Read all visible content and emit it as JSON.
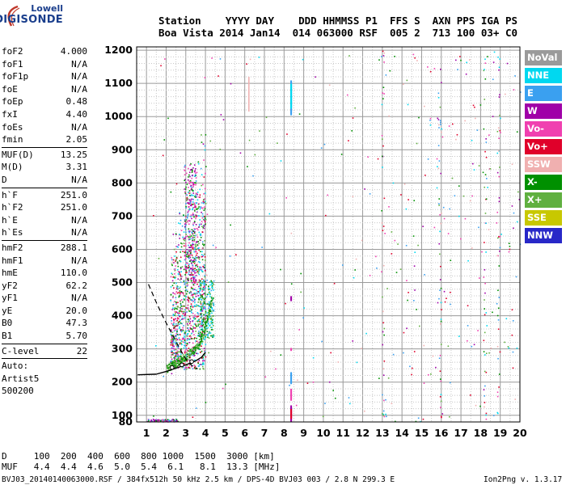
{
  "logo": {
    "top": "Lowell",
    "main": "DIGISONDE"
  },
  "header": {
    "line1": "Station    YYYY DAY    DDD HHMMSS P1  FFS S  AXN PPS IGA PS",
    "line2": "Boa Vista 2014 Jan14  014 063000 RSF  005 2  713 100 03+ C0"
  },
  "params": [
    {
      "label": "foF2",
      "value": "4.000"
    },
    {
      "label": "foF1",
      "value": "N/A"
    },
    {
      "label": "foF1p",
      "value": "N/A"
    },
    {
      "label": "foE",
      "value": "N/A"
    },
    {
      "label": "foEp",
      "value": "0.48"
    },
    {
      "label": "fxI",
      "value": "4.40"
    },
    {
      "label": "foEs",
      "value": "N/A"
    },
    {
      "label": "fmin",
      "value": "2.05"
    },
    {
      "sep": true
    },
    {
      "label": "MUF(D)",
      "value": "13.25"
    },
    {
      "label": "M(D)",
      "value": "3.31"
    },
    {
      "label": "D",
      "value": "N/A"
    },
    {
      "sep": true
    },
    {
      "label": "h`F",
      "value": "251.0"
    },
    {
      "label": "h`F2",
      "value": "251.0"
    },
    {
      "label": "h`E",
      "value": "N/A"
    },
    {
      "label": "h`Es",
      "value": "N/A"
    },
    {
      "sep": true
    },
    {
      "label": "hmF2",
      "value": "288.1"
    },
    {
      "label": "hmF1",
      "value": "N/A"
    },
    {
      "label": "hmE",
      "value": "110.0"
    },
    {
      "label": "yF2",
      "value": "62.2"
    },
    {
      "label": "yF1",
      "value": "N/A"
    },
    {
      "label": "yE",
      "value": "20.0"
    },
    {
      "label": "B0",
      "value": "47.3"
    },
    {
      "label": "B1",
      "value": "5.70"
    },
    {
      "sep": true
    },
    {
      "label": "C-level",
      "value": "22"
    },
    {
      "sep": true
    },
    {
      "label": "Auto:",
      "value": ""
    },
    {
      "label": "Artist5",
      "value": ""
    },
    {
      "label": "500200",
      "value": ""
    }
  ],
  "legend": [
    {
      "label": "NoVal",
      "color": "#9a9a9a"
    },
    {
      "label": "NNE",
      "color": "#00d8f0"
    },
    {
      "label": "E",
      "color": "#3aa0f0"
    },
    {
      "label": "W",
      "color": "#a000a8"
    },
    {
      "label": "Vo-",
      "color": "#f040b0"
    },
    {
      "label": "Vo+",
      "color": "#e0002a"
    },
    {
      "label": "SSW",
      "color": "#f0b0b0"
    },
    {
      "label": "X-",
      "color": "#009000"
    },
    {
      "label": "X+",
      "color": "#60b040"
    },
    {
      "label": "SSE",
      "color": "#c8c800"
    },
    {
      "label": "NNW",
      "color": "#2828c8"
    }
  ],
  "footer": {
    "d_row": "D     100  200  400  600  800 1000  1500  3000 [km]",
    "muf_row": "MUF   4.4  4.4  4.6  5.0  5.4  6.1   8.1  13.3 [MHz]",
    "file": "BVJ03_20140140063000.RSF / 384fx512h 50 kHz 2.5 km / DPS-4D BVJ03 003 / 2.8 N 299.3 E",
    "version": "Ion2Png v. 1.3.17"
  },
  "chart_data": {
    "type": "scatter",
    "title": "",
    "xlabel": "",
    "ylabel": "",
    "xlim": [
      0.5,
      20
    ],
    "ylim": [
      80,
      1210
    ],
    "x_ticks": [
      1,
      2,
      3,
      4,
      5,
      6,
      7,
      8,
      9,
      10,
      11,
      12,
      13,
      14,
      15,
      16,
      17,
      18,
      19,
      20
    ],
    "y_ticks": [
      80,
      100,
      200,
      300,
      400,
      500,
      600,
      700,
      800,
      900,
      1000,
      1100,
      1200
    ],
    "grid": true,
    "trace_regions": [
      {
        "name": "F-trace",
        "x": [
          2.0,
          4.4
        ],
        "y": [
          220,
          520
        ],
        "colors": [
          "X-",
          "X+",
          "E",
          "W",
          "Vo-"
        ]
      },
      {
        "name": "F-spread",
        "x": [
          2.3,
          3.8
        ],
        "y": [
          300,
          860
        ],
        "colors": [
          "X-",
          "W",
          "Vo-",
          "E"
        ]
      },
      {
        "name": "E-layer-echo",
        "x": [
          1.0,
          2.5
        ],
        "y": [
          80,
          90
        ],
        "colors": [
          "Vo-",
          "W",
          "X-"
        ]
      },
      {
        "name": "interference-8.3MHz",
        "x": [
          8.3,
          8.3
        ],
        "y": [
          80,
          1110
        ],
        "colors": [
          "W",
          "Vo-",
          "E",
          "NNE"
        ]
      }
    ],
    "profile_curve": [
      [
        1.5,
        224
      ],
      [
        2.0,
        232
      ],
      [
        2.5,
        242
      ],
      [
        3.0,
        252
      ],
      [
        3.5,
        264
      ],
      [
        3.8,
        275
      ],
      [
        4.0,
        290
      ]
    ],
    "virtual_curve_dashed": [
      [
        1.1,
        495
      ],
      [
        1.5,
        440
      ],
      [
        1.9,
        390
      ],
      [
        2.3,
        345
      ],
      [
        2.7,
        300
      ],
      [
        3.0,
        270
      ],
      [
        3.3,
        250
      ],
      [
        3.6,
        240
      ]
    ],
    "profile_points": [
      [
        2.3,
        244
      ],
      [
        2.8,
        252
      ],
      [
        3.3,
        262
      ]
    ]
  }
}
